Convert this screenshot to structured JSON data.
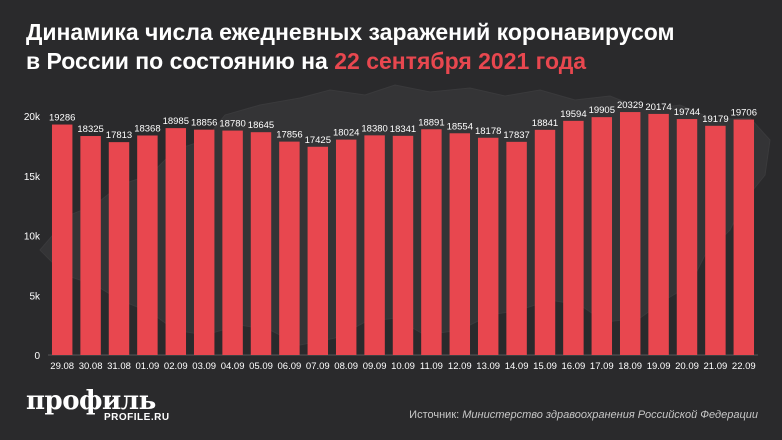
{
  "title": {
    "line1": "Динамика числа ежедневных заражений коронавирусом",
    "line2_prefix": "в России по состоянию на ",
    "line2_highlight": "22 сентября 2021 года"
  },
  "colors": {
    "background": "#2a2a2c",
    "bar": "#e8474f",
    "highlight": "#e8474f",
    "text": "#ffffff"
  },
  "chart_data": {
    "type": "bar",
    "categories": [
      "29.08",
      "30.08",
      "31.08",
      "01.09",
      "02.09",
      "03.09",
      "04.09",
      "05.09",
      "06.09",
      "07.09",
      "08.09",
      "09.09",
      "10.09",
      "11.09",
      "12.09",
      "13.09",
      "14.09",
      "15.09",
      "16.09",
      "17.09",
      "18.09",
      "19.09",
      "20.09",
      "21.09",
      "22.09"
    ],
    "values": [
      19286,
      18325,
      17813,
      18368,
      18985,
      18856,
      18780,
      18645,
      17856,
      17425,
      18024,
      18380,
      18341,
      18891,
      18554,
      18178,
      17837,
      18841,
      19594,
      19905,
      20329,
      20174,
      19744,
      19179,
      19706
    ],
    "ylim": [
      0,
      20000
    ],
    "yticks": [
      0,
      5000,
      10000,
      15000,
      20000
    ],
    "ytick_labels": [
      "0",
      "5k",
      "10k",
      "15k",
      "20k"
    ],
    "grid": false,
    "data_labels": true
  },
  "logo": {
    "main": "профиль",
    "sub": "PROFILE.RU"
  },
  "source": {
    "label": "Источник: ",
    "text": "Министерство здравоохранения Российской Федерации"
  }
}
